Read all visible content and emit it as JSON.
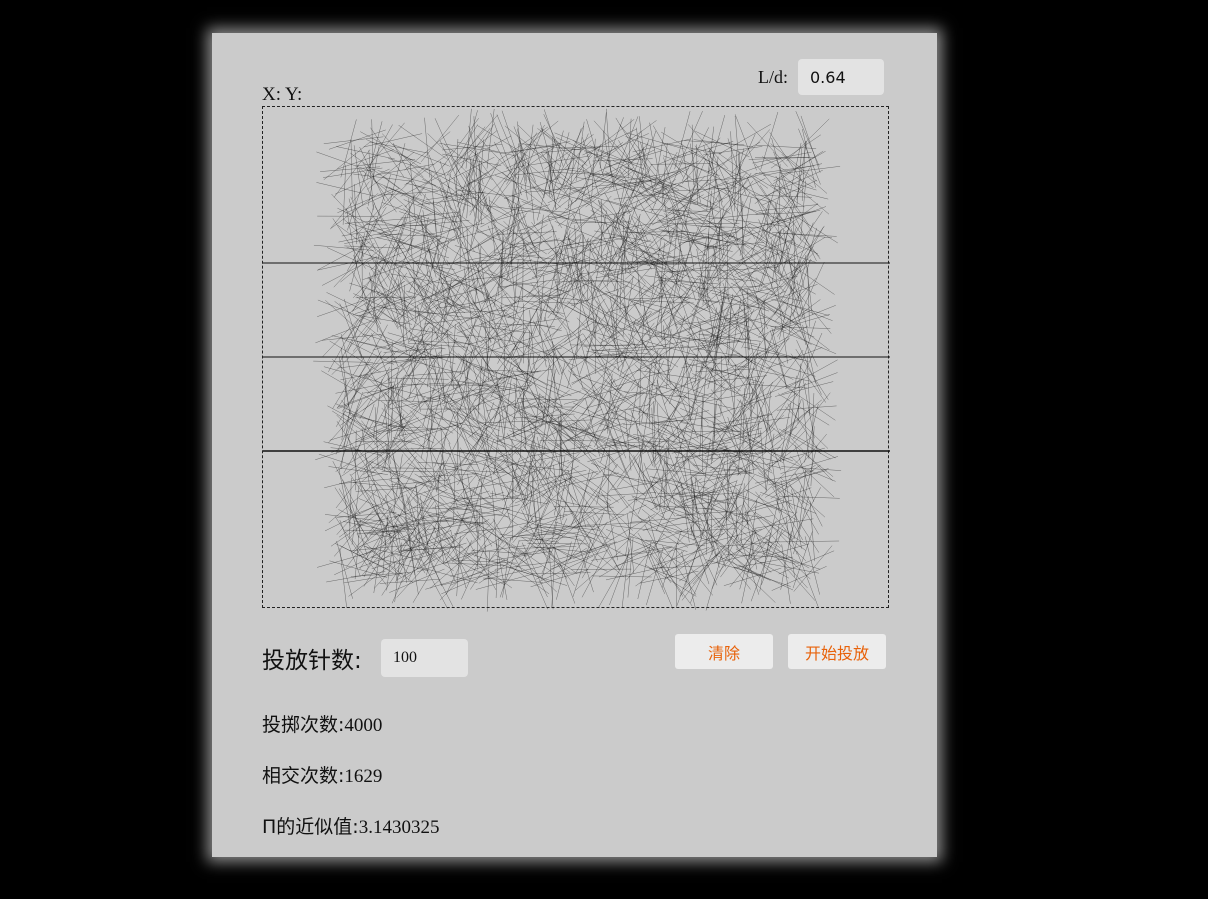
{
  "controls": {
    "ratio_label": "L/d:",
    "ratio_value": "0.64",
    "coords_label": "X: Y:",
    "needle_count_label": "投放针数:",
    "needle_count_value": "100",
    "clear_button": "清除",
    "start_button": "开始投放"
  },
  "stats": {
    "throws_label": "投掷次数:",
    "throws_value": "4000",
    "intersections_label": "相交次数:",
    "intersections_value": "1629",
    "pi_label": "Π的近似值:",
    "pi_value": "3.1430325"
  },
  "colors": {
    "background": "#000000",
    "panel": "#cbcbcb",
    "accent": "#e8620a",
    "needle": "#1a1a1a"
  }
}
